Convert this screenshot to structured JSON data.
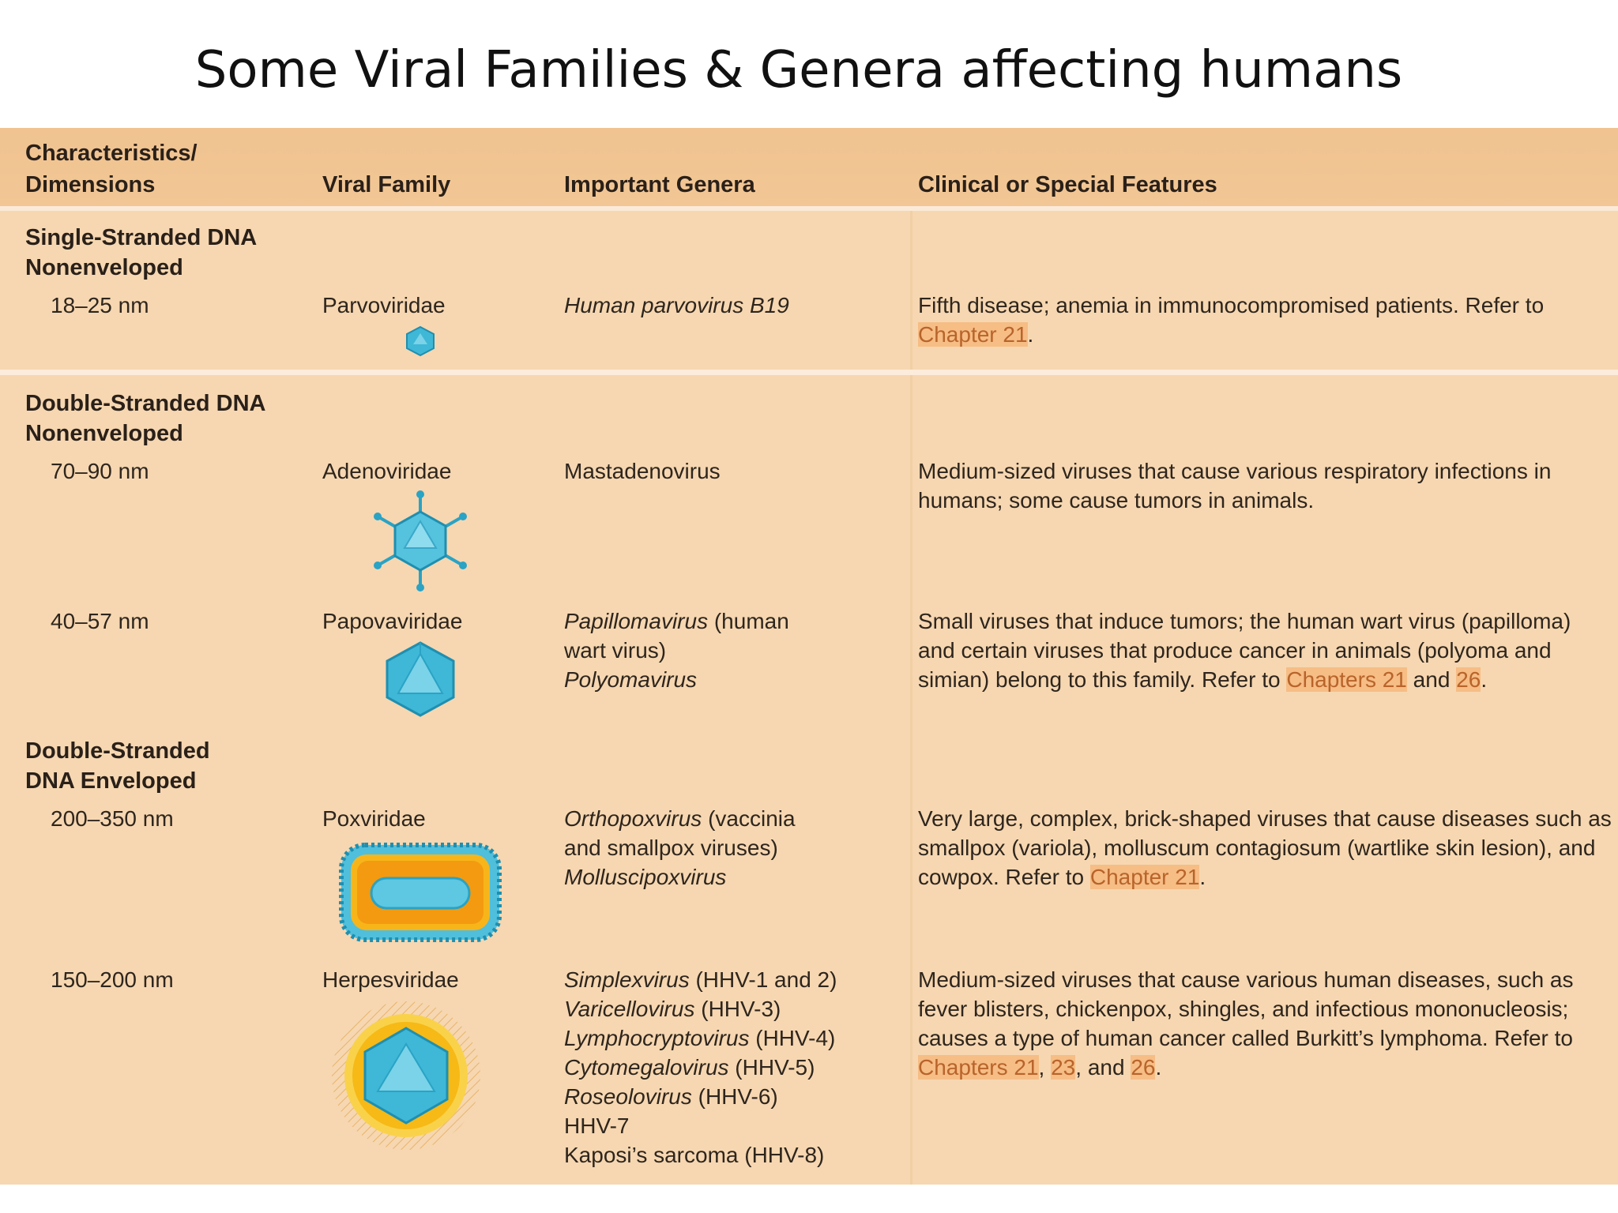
{
  "title": "Some Viral Families & Genera affecting humans",
  "columns": [
    "Characteristics/",
    "Dimensions",
    "Viral Family",
    "Important Genera",
    "Clinical or Special Features"
  ],
  "sections": [
    {
      "label_lines": [
        "Single-Stranded DNA",
        "Nonenveloped"
      ]
    },
    {
      "label_lines": [
        "Double-Stranded DNA",
        "Nonenveloped"
      ]
    },
    {
      "label_lines": [
        "Double-Stranded",
        "DNA Enveloped"
      ]
    }
  ],
  "rows": [
    {
      "size": "18–25 nm",
      "family": "Parvoviridae",
      "icon": "parvovirus-icon",
      "genera": [
        [
          "Human parvovirus B19",
          ""
        ]
      ],
      "features": [
        "Fifth disease; anemia in immunocompromised patients. Refer to ",
        "Chapter 21",
        "."
      ]
    },
    {
      "size": "70–90 nm",
      "family": "Adenoviridae",
      "icon": "adenovirus-icon",
      "genera": [
        [
          "",
          "Mastadenovirus"
        ]
      ],
      "features": [
        "Medium-sized viruses that cause various respiratory infections in humans; some cause tumors in animals."
      ]
    },
    {
      "size": "40–57 nm",
      "family": "Papovaviridae",
      "icon": "papovavirus-icon",
      "genera": [
        [
          "Papillomavirus",
          " (human"
        ],
        [
          "",
          "wart virus)"
        ],
        [
          "Polyomavirus",
          ""
        ]
      ],
      "features": [
        "Small viruses that induce tumors; the human wart virus (papilloma) and certain viruses that produce cancer in animals (polyoma and simian) belong to this family. Refer to ",
        "Chapters 21",
        " and ",
        "26",
        "."
      ]
    },
    {
      "size": "200–350 nm",
      "family": "Poxviridae",
      "icon": "poxvirus-icon",
      "genera": [
        [
          "Orthopoxvirus",
          " (vaccinia"
        ],
        [
          "",
          "and smallpox viruses)"
        ],
        [
          "Molluscipoxvirus",
          ""
        ]
      ],
      "features": [
        "Very large, complex, brick-shaped viruses that cause diseases such as smallpox (variola), molluscum contagiosum (wartlike skin lesion), and cowpox. Refer to ",
        "Chapter 21",
        "."
      ]
    },
    {
      "size": "150–200 nm",
      "family": "Herpesviridae",
      "icon": "herpesvirus-icon",
      "genera": [
        [
          "Simplexvirus",
          " (HHV-1 and 2)"
        ],
        [
          "Varicellovirus",
          " (HHV-3)"
        ],
        [
          "Lymphocryptovirus",
          " (HHV-4)"
        ],
        [
          "Cytomegalovirus",
          " (HHV-5)"
        ],
        [
          "Roseolovirus",
          " (HHV-6)"
        ],
        [
          "",
          "HHV-7"
        ],
        [
          "",
          "Kaposi’s sarcoma (HHV-8)"
        ]
      ],
      "features": [
        "Medium-sized viruses that cause various human diseases, such as fever blisters, chickenpox, shingles, and infectious mononucleosis; causes a type of human cancer called Burkitt’s lymphoma. Refer to ",
        "Chapters 21",
        ", ",
        "23",
        ", and ",
        "26",
        "."
      ]
    }
  ]
}
